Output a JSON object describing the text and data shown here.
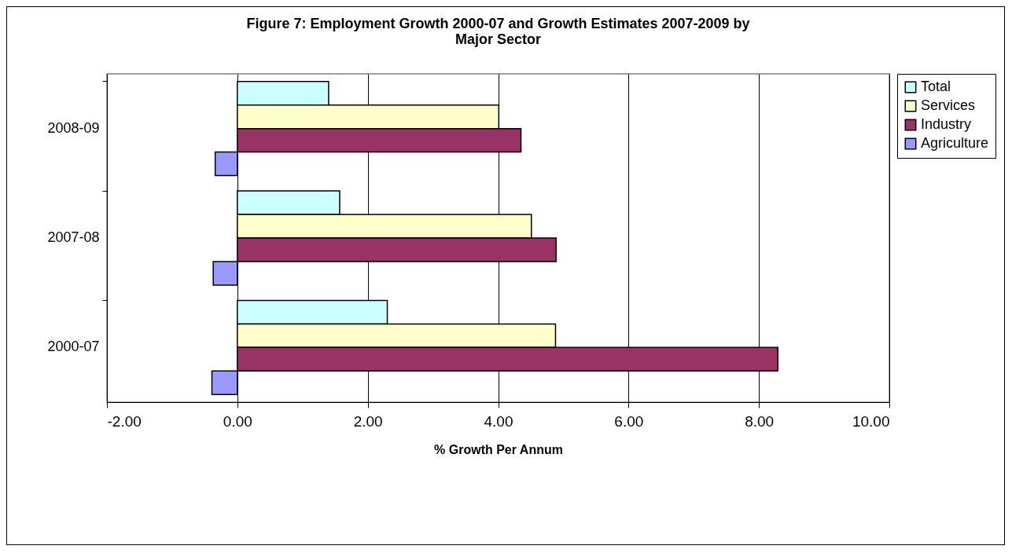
{
  "chart_data": {
    "type": "bar",
    "orientation": "horizontal",
    "title": "Figure 7: Employment Growth 2000-07 and Growth Estimates 2007-2009 by Major Sector",
    "xlabel": "% Growth Per Annum",
    "categories": [
      "2008-09",
      "2007-08",
      "2000-07"
    ],
    "series": [
      {
        "name": "Total",
        "color": "#ccffff",
        "values": [
          1.4,
          1.57,
          2.3
        ]
      },
      {
        "name": "Services",
        "color": "#ffffcc",
        "values": [
          4.01,
          4.51,
          4.88
        ]
      },
      {
        "name": "Industry",
        "color": "#993366",
        "values": [
          4.35,
          4.89,
          8.29
        ]
      },
      {
        "name": "Agriculture",
        "color": "#9999ff",
        "values": [
          -0.34,
          -0.37,
          -0.39
        ]
      }
    ],
    "xlim": [
      -2,
      10
    ],
    "xticks": [
      {
        "value": -2,
        "label": "-2.00"
      },
      {
        "value": 0,
        "label": "0.00"
      },
      {
        "value": 2,
        "label": "2.00"
      },
      {
        "value": 4,
        "label": "4.00"
      },
      {
        "value": 6,
        "label": "6.00"
      },
      {
        "value": 8,
        "label": "8.00"
      },
      {
        "value": 10,
        "label": "10.00"
      }
    ],
    "grid": "x",
    "legend": "right"
  }
}
